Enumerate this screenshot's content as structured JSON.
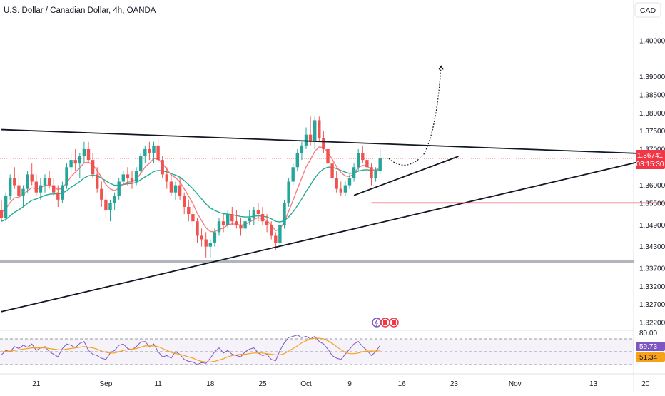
{
  "header": {
    "symbol_title": "U.S. Dollar / Canadian Dollar, 4h, OANDA",
    "currency_button": "CAD"
  },
  "colors": {
    "up": "#26a69a",
    "down": "#ef5350",
    "ema": "#f77c80",
    "sma": "#22ab94",
    "rsi": "#7e57c2",
    "rsi_ma": "#f7a21b",
    "price_tag": "#f23645",
    "trendline": "#131722",
    "support": "#f23645",
    "horizontal_zone": "#b2b5be"
  },
  "chart_data": {
    "type": "candlestick",
    "price_axis": {
      "ticks": [
        "1.40000",
        "1.39000",
        "1.38500",
        "1.38000",
        "1.37500",
        "1.37000",
        "1.36000",
        "1.35500",
        "1.34900",
        "1.34300",
        "1.33700",
        "1.33200",
        "1.32700",
        "1.32200"
      ],
      "tick_values": [
        1.4,
        1.39,
        1.385,
        1.38,
        1.375,
        1.37,
        1.36,
        1.355,
        1.349,
        1.343,
        1.337,
        1.332,
        1.327,
        1.322
      ]
    },
    "time_axis": {
      "ticks": [
        "21",
        "Sep",
        "11",
        "18",
        "25",
        "Oct",
        "9",
        "16",
        "23",
        "Nov",
        "13",
        "20"
      ],
      "tick_bars": [
        8,
        24,
        36,
        48,
        60,
        70,
        80,
        92,
        104,
        118,
        136,
        148
      ]
    },
    "last_price": "1.36741",
    "countdown": "03:15:30",
    "ohlc_per_bar": [
      [
        1.353,
        1.356,
        1.35,
        1.351
      ],
      [
        1.351,
        1.358,
        1.35,
        1.357
      ],
      [
        1.357,
        1.363,
        1.356,
        1.362
      ],
      [
        1.362,
        1.365,
        1.359,
        1.36
      ],
      [
        1.36,
        1.363,
        1.356,
        1.357
      ],
      [
        1.357,
        1.36,
        1.354,
        1.359
      ],
      [
        1.359,
        1.364,
        1.358,
        1.363
      ],
      [
        1.363,
        1.366,
        1.36,
        1.361
      ],
      [
        1.361,
        1.363,
        1.357,
        1.358
      ],
      [
        1.358,
        1.362,
        1.356,
        1.36
      ],
      [
        1.36,
        1.363,
        1.358,
        1.362
      ],
      [
        1.362,
        1.364,
        1.359,
        1.36
      ],
      [
        1.36,
        1.362,
        1.357,
        1.358
      ],
      [
        1.358,
        1.36,
        1.354,
        1.356
      ],
      [
        1.356,
        1.361,
        1.355,
        1.36
      ],
      [
        1.36,
        1.366,
        1.359,
        1.365
      ],
      [
        1.365,
        1.369,
        1.363,
        1.367
      ],
      [
        1.367,
        1.37,
        1.364,
        1.366
      ],
      [
        1.366,
        1.369,
        1.362,
        1.368
      ],
      [
        1.368,
        1.372,
        1.366,
        1.37
      ],
      [
        1.37,
        1.372,
        1.366,
        1.367
      ],
      [
        1.367,
        1.369,
        1.362,
        1.363
      ],
      [
        1.363,
        1.365,
        1.358,
        1.359
      ],
      [
        1.359,
        1.361,
        1.354,
        1.356
      ],
      [
        1.356,
        1.358,
        1.351,
        1.353
      ],
      [
        1.353,
        1.356,
        1.35,
        1.355
      ],
      [
        1.355,
        1.358,
        1.353,
        1.357
      ],
      [
        1.357,
        1.362,
        1.356,
        1.361
      ],
      [
        1.361,
        1.364,
        1.36,
        1.363
      ],
      [
        1.363,
        1.365,
        1.36,
        1.362
      ],
      [
        1.362,
        1.364,
        1.359,
        1.361
      ],
      [
        1.361,
        1.365,
        1.36,
        1.364
      ],
      [
        1.364,
        1.369,
        1.363,
        1.368
      ],
      [
        1.368,
        1.371,
        1.366,
        1.37
      ],
      [
        1.37,
        1.372,
        1.367,
        1.369
      ],
      [
        1.369,
        1.372,
        1.366,
        1.371
      ],
      [
        1.371,
        1.373,
        1.366,
        1.367
      ],
      [
        1.367,
        1.368,
        1.362,
        1.363
      ],
      [
        1.363,
        1.365,
        1.359,
        1.361
      ],
      [
        1.361,
        1.363,
        1.357,
        1.358
      ],
      [
        1.358,
        1.361,
        1.356,
        1.36
      ],
      [
        1.36,
        1.362,
        1.356,
        1.357
      ],
      [
        1.357,
        1.358,
        1.352,
        1.354
      ],
      [
        1.354,
        1.356,
        1.35,
        1.352
      ],
      [
        1.352,
        1.354,
        1.348,
        1.35
      ],
      [
        1.35,
        1.351,
        1.344,
        1.346
      ],
      [
        1.346,
        1.348,
        1.343,
        1.345
      ],
      [
        1.345,
        1.347,
        1.34,
        1.343
      ],
      [
        1.343,
        1.345,
        1.34,
        1.344
      ],
      [
        1.344,
        1.348,
        1.343,
        1.347
      ],
      [
        1.347,
        1.351,
        1.346,
        1.35
      ],
      [
        1.35,
        1.352,
        1.347,
        1.349
      ],
      [
        1.349,
        1.353,
        1.348,
        1.352
      ],
      [
        1.352,
        1.354,
        1.349,
        1.35
      ],
      [
        1.35,
        1.353,
        1.348,
        1.349
      ],
      [
        1.349,
        1.351,
        1.346,
        1.348
      ],
      [
        1.348,
        1.351,
        1.347,
        1.35
      ],
      [
        1.35,
        1.353,
        1.349,
        1.351
      ],
      [
        1.351,
        1.354,
        1.349,
        1.353
      ],
      [
        1.353,
        1.355,
        1.35,
        1.352
      ],
      [
        1.352,
        1.354,
        1.349,
        1.35
      ],
      [
        1.35,
        1.352,
        1.347,
        1.349
      ],
      [
        1.349,
        1.35,
        1.345,
        1.346
      ],
      [
        1.346,
        1.347,
        1.342,
        1.344
      ],
      [
        1.344,
        1.35,
        1.343,
        1.349
      ],
      [
        1.349,
        1.356,
        1.348,
        1.355
      ],
      [
        1.355,
        1.362,
        1.354,
        1.361
      ],
      [
        1.361,
        1.366,
        1.36,
        1.365
      ],
      [
        1.365,
        1.37,
        1.364,
        1.369
      ],
      [
        1.369,
        1.372,
        1.367,
        1.371
      ],
      [
        1.371,
        1.376,
        1.37,
        1.374
      ],
      [
        1.374,
        1.379,
        1.371,
        1.372
      ],
      [
        1.372,
        1.379,
        1.37,
        1.378
      ],
      [
        1.378,
        1.379,
        1.372,
        1.373
      ],
      [
        1.373,
        1.375,
        1.369,
        1.37
      ],
      [
        1.37,
        1.372,
        1.364,
        1.366
      ],
      [
        1.366,
        1.368,
        1.36,
        1.362
      ],
      [
        1.362,
        1.364,
        1.358,
        1.359
      ],
      [
        1.359,
        1.361,
        1.357,
        1.358
      ],
      [
        1.358,
        1.361,
        1.357,
        1.36
      ],
      [
        1.36,
        1.363,
        1.359,
        1.362
      ],
      [
        1.362,
        1.366,
        1.361,
        1.365
      ],
      [
        1.365,
        1.37,
        1.364,
        1.369
      ],
      [
        1.369,
        1.371,
        1.366,
        1.367
      ],
      [
        1.367,
        1.369,
        1.363,
        1.365
      ],
      [
        1.365,
        1.366,
        1.36,
        1.362
      ],
      [
        1.362,
        1.365,
        1.361,
        1.364
      ],
      [
        1.364,
        1.37,
        1.363,
        1.3674
      ]
    ],
    "indicators": {
      "moving_average_fast": [
        1.3525,
        1.3535,
        1.3552,
        1.3565,
        1.3567,
        1.3573,
        1.3585,
        1.3593,
        1.359,
        1.3593,
        1.36,
        1.36,
        1.3595,
        1.3588,
        1.3592,
        1.3607,
        1.3624,
        1.3636,
        1.3648,
        1.3662,
        1.3664,
        1.3656,
        1.3641,
        1.3622,
        1.3602,
        1.359,
        1.3585,
        1.3592,
        1.3603,
        1.3609,
        1.3609,
        1.3616,
        1.3633,
        1.365,
        1.3661,
        1.3674,
        1.3673,
        1.366,
        1.3645,
        1.3628,
        1.3621,
        1.3609,
        1.359,
        1.357,
        1.3549,
        1.3522,
        1.3502,
        1.3482,
        1.3472,
        1.3471,
        1.3478,
        1.3481,
        1.349,
        1.3493,
        1.3492,
        1.3489,
        1.3492,
        1.3497,
        1.3506,
        1.351,
        1.3507,
        1.3502,
        1.349,
        1.3474,
        1.3479,
        1.3499,
        1.3528,
        1.3558,
        1.359,
        1.362,
        1.3651,
        1.3671,
        1.3694,
        1.3706,
        1.3704,
        1.3691,
        1.3672,
        1.3651,
        1.3635,
        1.3626,
        1.3624,
        1.3632,
        1.3649,
        1.3655,
        1.3653,
        1.3643,
        1.3642,
        1.3651
      ],
      "moving_average_slow": [
        1.35,
        1.3505,
        1.3515,
        1.3525,
        1.3532,
        1.354,
        1.355,
        1.3558,
        1.3562,
        1.3567,
        1.3572,
        1.3575,
        1.3576,
        1.3576,
        1.3578,
        1.3585,
        1.3594,
        1.3602,
        1.361,
        1.362,
        1.3626,
        1.3628,
        1.3626,
        1.362,
        1.3612,
        1.3605,
        1.36,
        1.36,
        1.3602,
        1.3604,
        1.3605,
        1.3608,
        1.3615,
        1.3623,
        1.363,
        1.3638,
        1.3641,
        1.364,
        1.3637,
        1.3632,
        1.3628,
        1.3622,
        1.3613,
        1.3602,
        1.359,
        1.3576,
        1.3562,
        1.3548,
        1.3537,
        1.353,
        1.3525,
        1.3521,
        1.352,
        1.3518,
        1.3516,
        1.3513,
        1.3512,
        1.3512,
        1.3514,
        1.3515,
        1.3514,
        1.3512,
        1.3507,
        1.35,
        1.3498,
        1.3502,
        1.3512,
        1.3526,
        1.3543,
        1.3562,
        1.3583,
        1.3601,
        1.362,
        1.3635,
        1.3645,
        1.365,
        1.365,
        1.3646,
        1.3641,
        1.3636,
        1.3633,
        1.3634,
        1.3639,
        1.3642,
        1.3643,
        1.3641,
        1.3641,
        1.3644
      ]
    },
    "drawings": {
      "descending_resistance": {
        "start": {
          "bar": 0,
          "price": 1.3754
        },
        "end": {
          "bar": 160,
          "price": 1.3682
        }
      },
      "ascending_support": {
        "start": {
          "bar": 0,
          "price": 1.325
        },
        "end": {
          "bar": 160,
          "price": 1.3703
        }
      },
      "short_rising_line": {
        "start": {
          "bar": 81,
          "price": 1.3572
        },
        "end": {
          "bar": 105,
          "price": 1.368
        }
      },
      "horizontal_level_red": {
        "price": 1.3551,
        "from_bar": 85,
        "to_bar": 160
      },
      "horizontal_zone_gray": {
        "price": 1.3388
      },
      "projection_curve": [
        {
          "bar": 89,
          "price": 1.3674
        },
        {
          "bar": 93,
          "price": 1.366
        },
        {
          "bar": 97,
          "price": 1.3685
        },
        {
          "bar": 100,
          "price": 1.38
        },
        {
          "bar": 101,
          "price": 1.393
        }
      ]
    },
    "rsi_pane": {
      "label": "80.00",
      "levels": [
        70,
        50,
        30
      ],
      "current": "59.73",
      "ma_current": "51.34",
      "rsi_values": [
        45,
        52,
        50,
        58,
        55,
        60,
        57,
        62,
        52,
        56,
        58,
        50,
        46,
        42,
        55,
        62,
        60,
        56,
        63,
        66,
        52,
        46,
        44,
        40,
        38,
        48,
        52,
        60,
        62,
        55,
        53,
        58,
        65,
        66,
        58,
        62,
        50,
        42,
        44,
        40,
        50,
        46,
        38,
        35,
        34,
        30,
        33,
        32,
        40,
        50,
        56,
        48,
        52,
        46,
        44,
        42,
        50,
        54,
        56,
        48,
        44,
        46,
        38,
        36,
        52,
        64,
        72,
        74,
        76,
        72,
        74,
        70,
        74,
        66,
        62,
        54,
        44,
        40,
        38,
        46,
        54,
        62,
        66,
        58,
        52,
        44,
        50,
        60
      ],
      "rsi_ma_values": [
        50,
        50,
        51,
        52,
        53,
        54,
        55,
        56,
        56,
        56,
        56,
        55,
        54,
        53,
        53,
        54,
        55,
        56,
        57,
        58,
        57,
        56,
        54,
        51,
        49,
        48,
        48,
        50,
        52,
        53,
        54,
        55,
        57,
        59,
        59,
        59,
        58,
        55,
        52,
        49,
        47,
        46,
        44,
        42,
        40,
        37,
        35,
        34,
        34,
        35,
        37,
        39,
        42,
        44,
        45,
        46,
        46,
        47,
        48,
        48,
        48,
        47,
        46,
        45,
        45,
        47,
        51,
        55,
        59,
        64,
        67,
        70,
        71,
        71,
        70,
        67,
        63,
        58,
        53,
        49,
        47,
        47,
        48,
        50,
        51,
        51,
        51,
        51.34
      ]
    }
  }
}
